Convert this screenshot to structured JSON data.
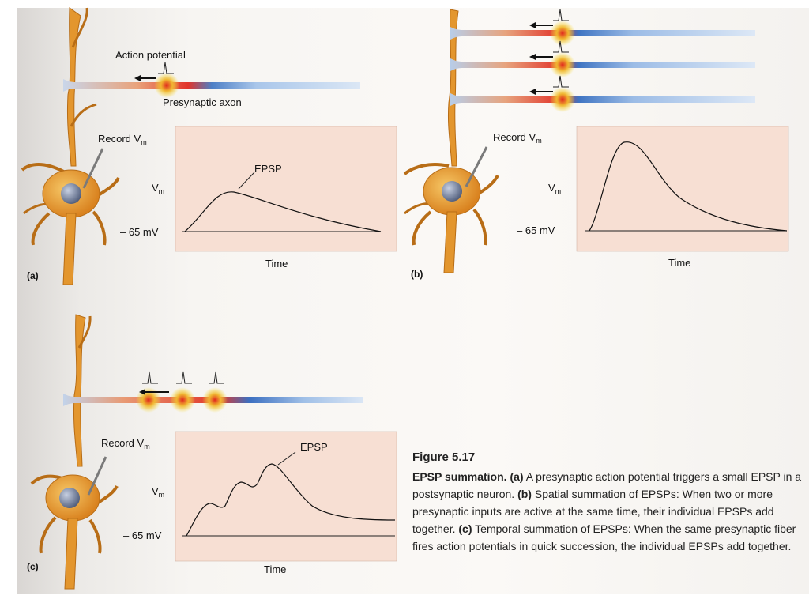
{
  "panel_a": {
    "tag": "(a)",
    "action_potential_label": "Action potential",
    "axon_label": "Presynaptic axon",
    "record_label": "Record V",
    "record_sub": "m",
    "epsp_label": "EPSP",
    "y_label": "V",
    "y_sub": "m",
    "baseline_label": "– 65 mV",
    "x_label": "Time"
  },
  "panel_b": {
    "tag": "(b)",
    "record_label": "Record V",
    "record_sub": "m",
    "y_label": "V",
    "y_sub": "m",
    "baseline_label": "– 65 mV",
    "x_label": "Time"
  },
  "panel_c": {
    "tag": "(c)",
    "record_label": "Record V",
    "record_sub": "m",
    "epsp_label": "EPSP",
    "y_label": "V",
    "y_sub": "m",
    "baseline_label": "– 65 mV",
    "x_label": "Time"
  },
  "caption": {
    "title": "Figure 5.17",
    "lead": "EPSP summation.",
    "a_tag": "(a)",
    "a_text": " A presynaptic action potential triggers a small EPSP in a postsynaptic neuron. ",
    "b_tag": "(b)",
    "b_text": " Spatial summation of EPSPs: When two or more presynaptic inputs are active at the same time, their individual EPSPs add together. ",
    "c_tag": "(c)",
    "c_text": " Temporal summation of EPSPs: When the same presynaptic fiber fires action potentials in quick succession, the individual EPSPs add together."
  },
  "colors": {
    "graph_bg": "#f7dfd3",
    "neuron": "#e3962e",
    "axon_blue": "#5b8fd0",
    "spike_red": "#e0281e",
    "spike_glow": "#f6df3a"
  }
}
